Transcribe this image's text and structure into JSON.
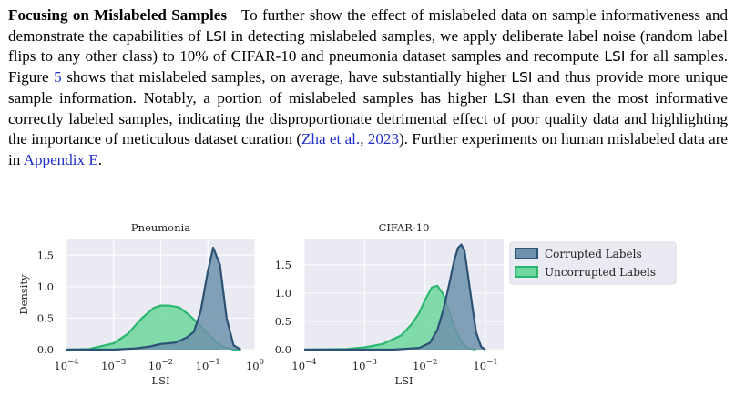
{
  "paragraph": {
    "heading": "Focusing on Mislabeled Samples",
    "text_1": "To further show the effect of mislabeled data on sample informativeness and demonstrate the capabilities of ",
    "lsi_1": "LSI",
    "text_2": " in detecting mislabeled samples, we apply deliberate label noise (random label flips to any other class) to 10% of CIFAR-10 and pneumonia dataset samples and recompute ",
    "lsi_2": "LSI",
    "text_3": " for all samples. Figure ",
    "fig_ref": "5",
    "text_4": " shows that mislabeled samples, on average, have substantially higher ",
    "lsi_3": "LSI",
    "text_5": " and thus provide more unique sample information. Notably, a portion of mislabeled samples has higher ",
    "lsi_4": "LSI",
    "text_6": " than even the most informative correctly labeled samples, indicating the disproportionate detrimental effect of poor quality data and highlighting the importance of meticulous dataset curation (",
    "cite_author": "Zha et al.",
    "cite_sep": ", ",
    "cite_year": "2023",
    "text_7": "). Further experiments on human mislabeled data are in ",
    "appendix_ref": "Appendix E",
    "text_8": "."
  },
  "colors": {
    "corrupted_fill": "#6e92ac",
    "corrupted_line": "#2c5275",
    "uncorrupted_fill": "#6ed79d",
    "uncorrupted_line": "#2cb770",
    "panel_bg": "#eaeaf2"
  },
  "chart_data": [
    {
      "type": "area",
      "title": "Pneumonia",
      "xlabel": "LSI",
      "ylabel": "Density",
      "x_scale": "log",
      "xlim": [
        0.0001,
        1
      ],
      "ylim": [
        0,
        1.75
      ],
      "xticks": [
        "10^-4",
        "10^-3",
        "10^-2",
        "10^-1",
        "10^0"
      ],
      "yticks": [
        "0.0",
        "0.5",
        "1.0",
        "1.5"
      ],
      "grid": true,
      "series": [
        {
          "name": "Corrupted Labels",
          "x": [
            0.0001,
            0.001,
            0.003,
            0.006,
            0.01,
            0.02,
            0.035,
            0.05,
            0.07,
            0.1,
            0.13,
            0.18,
            0.25,
            0.35,
            0.5
          ],
          "y": [
            0.0,
            0.0,
            0.02,
            0.05,
            0.09,
            0.11,
            0.19,
            0.28,
            0.6,
            1.25,
            1.62,
            1.35,
            0.5,
            0.07,
            0.0
          ]
        },
        {
          "name": "Uncorrupted Labels",
          "x": [
            0.0001,
            0.0003,
            0.001,
            0.002,
            0.004,
            0.007,
            0.01,
            0.015,
            0.025,
            0.04,
            0.07,
            0.1,
            0.15,
            0.22,
            0.35,
            0.5
          ],
          "y": [
            0.0,
            0.01,
            0.1,
            0.25,
            0.5,
            0.66,
            0.7,
            0.7,
            0.67,
            0.55,
            0.38,
            0.25,
            0.12,
            0.04,
            0.0,
            0.0
          ]
        }
      ]
    },
    {
      "type": "area",
      "title": "CIFAR-10",
      "xlabel": "LSI",
      "ylabel": "",
      "x_scale": "log",
      "xlim": [
        0.0001,
        0.2
      ],
      "ylim": [
        0,
        1.95
      ],
      "xticks": [
        "10^-4",
        "10^-3",
        "10^-2",
        "10^-1"
      ],
      "yticks": [
        "0.0",
        "0.5",
        "1.0",
        "1.5"
      ],
      "grid": true,
      "series": [
        {
          "name": "Corrupted Labels",
          "x": [
            0.0001,
            0.003,
            0.008,
            0.012,
            0.016,
            0.02,
            0.025,
            0.03,
            0.035,
            0.04,
            0.045,
            0.05,
            0.06,
            0.07,
            0.085,
            0.1
          ],
          "y": [
            0.0,
            0.0,
            0.03,
            0.12,
            0.35,
            0.7,
            1.15,
            1.55,
            1.8,
            1.86,
            1.75,
            1.4,
            0.8,
            0.3,
            0.05,
            0.0
          ]
        },
        {
          "name": "Uncorrupted Labels",
          "x": [
            0.0001,
            0.0005,
            0.001,
            0.002,
            0.004,
            0.006,
            0.008,
            0.01,
            0.013,
            0.016,
            0.02,
            0.025,
            0.03,
            0.04,
            0.05,
            0.07
          ],
          "y": [
            0.0,
            0.01,
            0.04,
            0.1,
            0.25,
            0.45,
            0.65,
            0.88,
            1.1,
            1.13,
            0.98,
            0.68,
            0.42,
            0.13,
            0.03,
            0.0
          ]
        }
      ]
    }
  ],
  "legend": {
    "placement": "right",
    "items": [
      "Corrupted Labels",
      "Uncorrupted Labels"
    ]
  }
}
